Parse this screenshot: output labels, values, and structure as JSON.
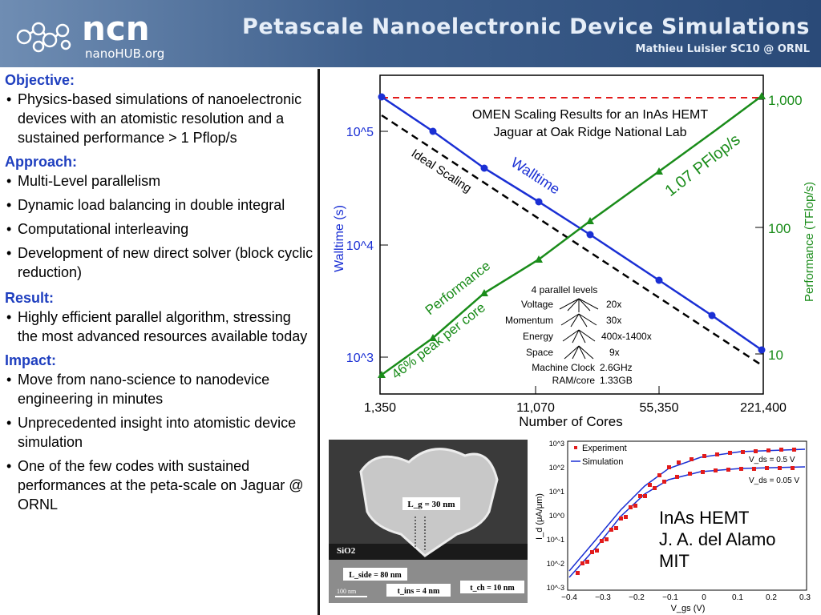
{
  "header": {
    "logo_text": "ncn",
    "logo_sub": "nanoHUB.org",
    "title": "Petascale Nanoelectronic Device Simulations",
    "subtitle": "Mathieu Luisier SC10 @ ORNL"
  },
  "left": {
    "objective": {
      "heading": "Objective:",
      "items": [
        "Physics-based simulations of nanoelectronic devices with an atomistic resolution and a sustained performance > 1 Pflop/s"
      ]
    },
    "approach": {
      "heading": "Approach:",
      "items": [
        "Multi-Level parallelism",
        "Dynamic load balancing in double integral",
        "Computational interleaving",
        "Development of new direct solver (block cyclic reduction)"
      ]
    },
    "result": {
      "heading": "Result:",
      "items": [
        "Highly efficient parallel algorithm, stressing the most advanced resources available today"
      ]
    },
    "impact": {
      "heading": "Impact:",
      "items": [
        "Move from nano-science to nanodevice engineering in minutes",
        "Unprecedented insight into atomistic device simulation",
        "One of the few codes with sustained performances at the peta-scale on Jaguar @ ORNL"
      ]
    }
  },
  "chart_data": [
    {
      "type": "line",
      "title": "OMEN Scaling Results for an InAs HEMT",
      "subtitle": "Jaguar at Oak Ridge National Lab",
      "xlabel": "Number of Cores",
      "ylabel": "Walltime (s)",
      "ylabel_right": "Performance (TFlop/s)",
      "x_ticks": [
        "1,350",
        "11,070",
        "55,350",
        "221,400"
      ],
      "y_ticks_left": [
        "10^5",
        "10^4",
        "10^3"
      ],
      "y_ticks_right": [
        "1,000",
        "100",
        "10"
      ],
      "series": [
        {
          "name": "Walltime",
          "color": "#1a2fd4"
        },
        {
          "name": "Performance",
          "color": "#1a8c1a"
        },
        {
          "name": "Ideal Scaling",
          "color": "#000000"
        }
      ],
      "annotations": {
        "peak": "1.07 PFlop/s",
        "peak_pct": "46% peak per core",
        "levels_title": "4 parallel levels",
        "levels": [
          {
            "name": "Voltage",
            "value": "20x"
          },
          {
            "name": "Momentum",
            "value": "30x"
          },
          {
            "name": "Energy",
            "value": "400x-1400x"
          },
          {
            "name": "Space",
            "value": "9x"
          }
        ],
        "machine": [
          {
            "name": "Machine Clock",
            "value": "2.6GHz"
          },
          {
            "name": "RAM/core",
            "value": "1.33GB"
          }
        ]
      }
    },
    {
      "type": "scatter",
      "xlabel": "V_gs (V)",
      "ylabel": "I_d (μA/μm)",
      "x_ticks": [
        "−0.4",
        "−0.3",
        "−0.2",
        "−0.1",
        "0",
        "0.1",
        "0.2",
        "0.3"
      ],
      "y_ticks": [
        "10^3",
        "10^2",
        "10^1",
        "10^0",
        "10^-1",
        "10^-2",
        "10^-3"
      ],
      "legend": [
        "Experiment",
        "Simulation"
      ],
      "curve_labels": [
        "V_ds = 0.5 V",
        "V_ds = 0.05 V"
      ],
      "caption": [
        "InAs HEMT",
        "J. A. del Alamo",
        "MIT"
      ]
    }
  ],
  "photo": {
    "labels": [
      "L_g = 30 nm",
      "SiO2",
      "L_side = 80 nm",
      "t_ins = 4 nm",
      "t_ch = 10 nm",
      "100 nm"
    ]
  }
}
